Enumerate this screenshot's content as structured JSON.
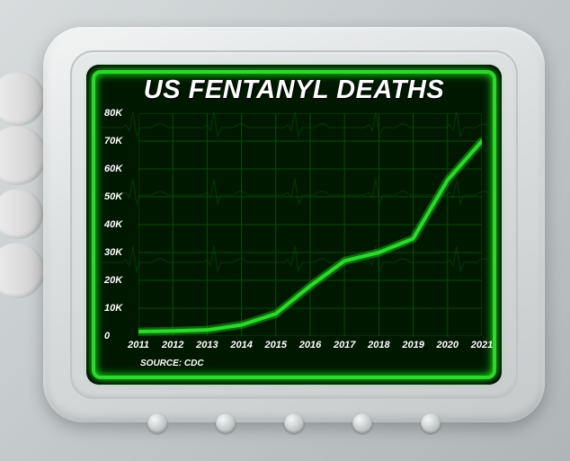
{
  "chart": {
    "type": "line",
    "title": "US FENTANYL DEATHS",
    "title_fontsize": 29,
    "source_label": "SOURCE: CDC",
    "source_fontsize": 10,
    "x_categories": [
      "2011",
      "2012",
      "2013",
      "2014",
      "2015",
      "2016",
      "2017",
      "2018",
      "2019",
      "2020",
      "2021"
    ],
    "y_values": [
      1600,
      1800,
      2200,
      4000,
      8000,
      18000,
      27000,
      30000,
      35000,
      56000,
      70000
    ],
    "y_ticks": [
      0,
      10000,
      20000,
      30000,
      40000,
      50000,
      60000,
      70000,
      80000
    ],
    "y_tick_labels": [
      "0",
      "10K",
      "20K",
      "30K",
      "40K",
      "50K",
      "60K",
      "70K",
      "80K"
    ],
    "ylim": [
      0,
      80000
    ],
    "tick_fontsize": 11,
    "line_color": "#2dd82d",
    "line_glow_color": "#1aff1a",
    "line_width": 4,
    "grid_color": "#0a4a0a",
    "grid_width": 1,
    "background_color": "#001800",
    "border_color": "#2dd82d",
    "text_color": "#ffffff",
    "ekg_color": "#0d5a0d"
  }
}
